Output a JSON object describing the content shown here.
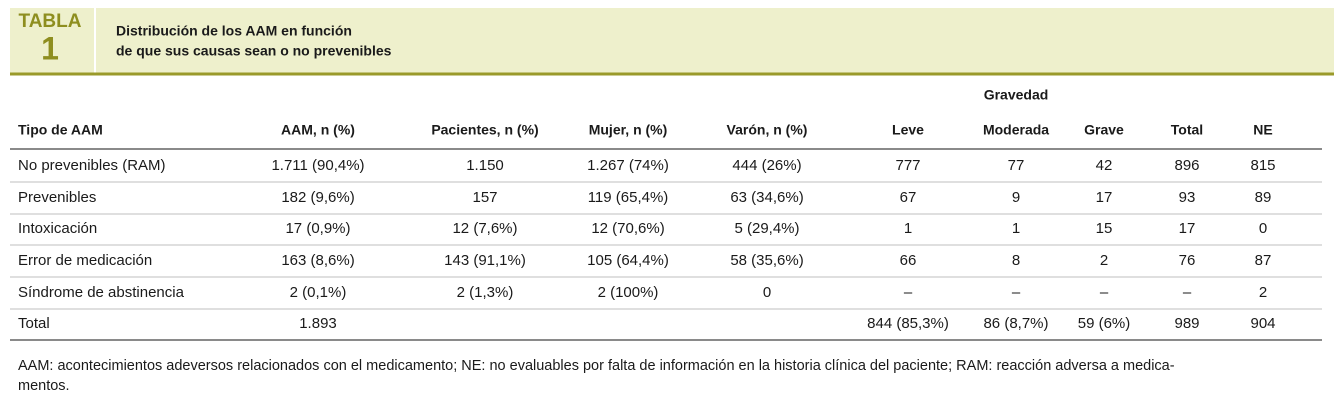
{
  "header": {
    "label": "TABLA",
    "number": "1",
    "title_lines": [
      "Distribución de los AAM en función",
      "de que sus causas sean o no prevenibles"
    ]
  },
  "table": {
    "group_header": "Gravedad",
    "columns": [
      "Tipo de AAM",
      "AAM, n (%)",
      "Pacientes, n (%)",
      "Mujer, n (%)",
      "Varón, n (%)",
      "Leve",
      "Moderada",
      "Grave",
      "Total",
      "NE"
    ],
    "rows": [
      [
        "No prevenibles (RAM)",
        "1.711 (90,4%)",
        "1.150",
        "1.267 (74%)",
        "444 (26%)",
        "777",
        "77",
        "42",
        "896",
        "815"
      ],
      [
        "Prevenibles",
        "182 (9,6%)",
        "157",
        "119 (65,4%)",
        "63 (34,6%)",
        "67",
        "9",
        "17",
        "93",
        "89"
      ],
      [
        "Intoxicación",
        "17 (0,9%)",
        "12 (7,6%)",
        "12 (70,6%)",
        "5 (29,4%)",
        "1",
        "1",
        "15",
        "17",
        "0"
      ],
      [
        "Error de medicación",
        "163 (8,6%)",
        "143 (91,1%)",
        "105 (64,4%)",
        "58 (35,6%)",
        "66",
        "8",
        "2",
        "76",
        "87"
      ],
      [
        "Síndrome de abstinencia",
        "2 (0,1%)",
        "2 (1,3%)",
        "2 (100%)",
        "0",
        "–",
        "–",
        "–",
        "–",
        "2"
      ],
      [
        "Total",
        "1.893",
        null,
        null,
        null,
        "844 (85,3%)",
        "86 (8,7%)",
        "59 (6%)",
        "989",
        "904"
      ]
    ]
  },
  "footnote_lines": [
    "AAM: acontecimientos adeversos relacionados con el medicamento; NE: no evaluables por falta de información en la historia clínica del paciente; RAM: reacción adversa a medica-",
    "mentos."
  ]
}
